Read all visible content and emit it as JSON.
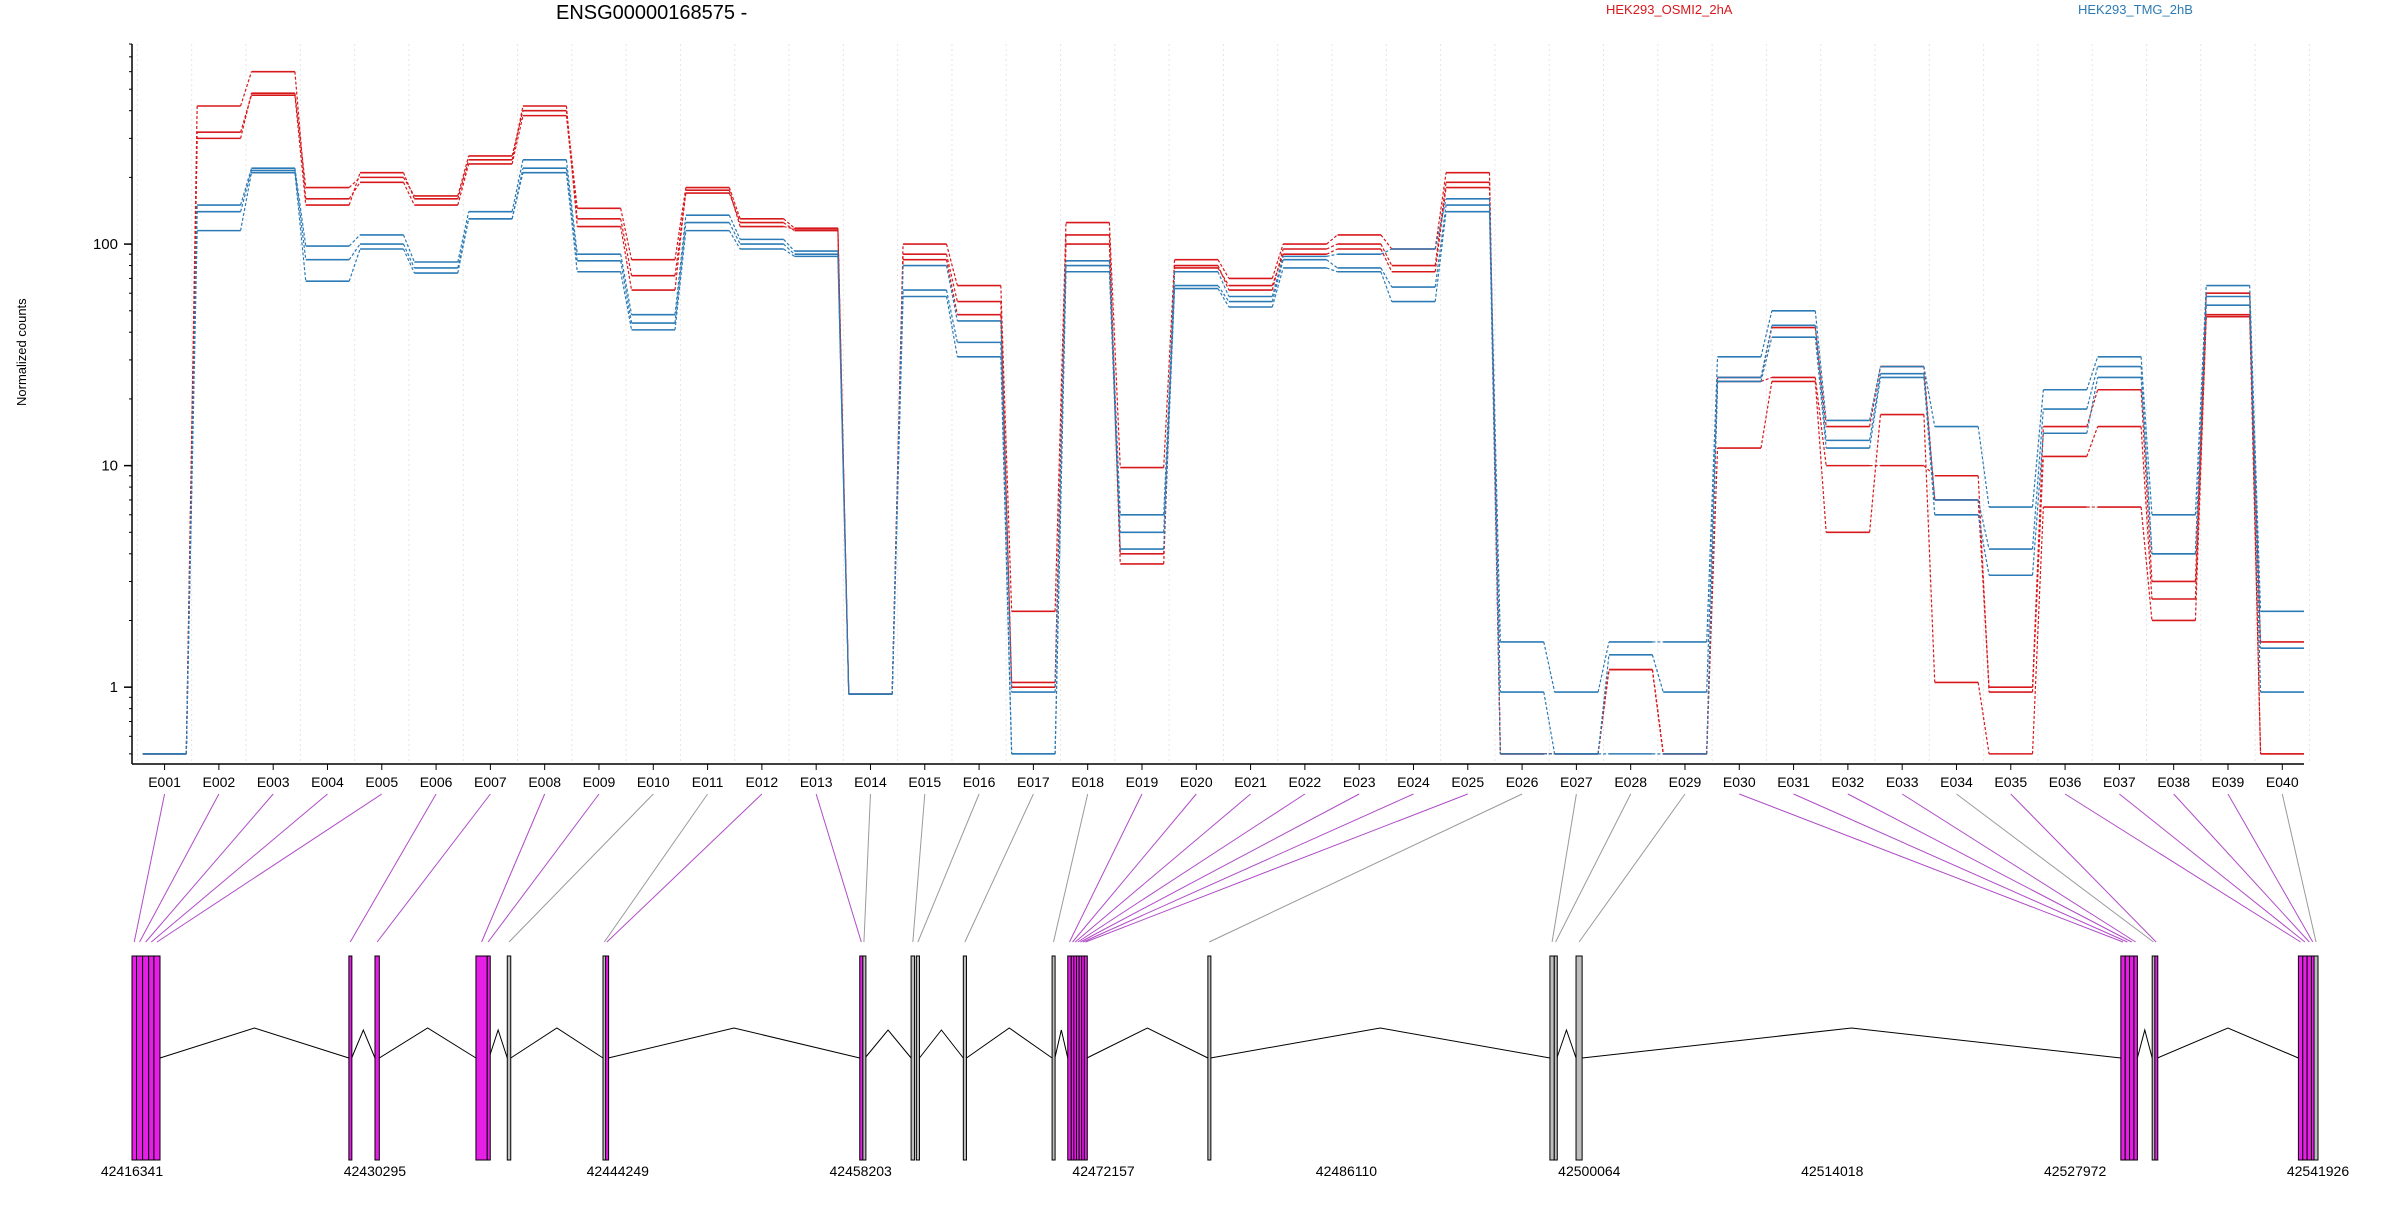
{
  "chart_data": {
    "type": "line",
    "title": "ENSG00000168575 -",
    "xlabel": "",
    "ylabel": "Normalized counts",
    "y_scale": "log",
    "ylim": [
      0.45,
      800
    ],
    "y_ticks": [
      1,
      10,
      100
    ],
    "y_tick_labels": [
      "1",
      "10",
      "100"
    ],
    "grid": "vertical dotted lines at exon boundaries",
    "legend_position": "top",
    "categories": [
      "E001",
      "E002",
      "E003",
      "E004",
      "E005",
      "E006",
      "E007",
      "E008",
      "E009",
      "E010",
      "E011",
      "E012",
      "E013",
      "E014",
      "E015",
      "E016",
      "E017",
      "E018",
      "E019",
      "E020",
      "E021",
      "E022",
      "E023",
      "E024",
      "E025",
      "E026",
      "E027",
      "E028",
      "E029",
      "E030",
      "E031",
      "E032",
      "E033",
      "E034",
      "E035",
      "E036",
      "E037",
      "E038",
      "E039",
      "E040"
    ],
    "series": [
      {
        "name": "HEK293_OSMI2_2hA",
        "group": "HEK293_OSMI2_2hA",
        "color": "#d7191c",
        "values": [
          0.5,
          300,
          480,
          180,
          200,
          165,
          250,
          400,
          145,
          85,
          180,
          130,
          118,
          0.93,
          100,
          65,
          2.2,
          125,
          9.8,
          85,
          70,
          100,
          110,
          95,
          210,
          0.5,
          0.5,
          1.2,
          0.5,
          25,
          42,
          15,
          28,
          7,
          1,
          15,
          22,
          3,
          60,
          0.5
        ]
      },
      {
        "name": "HEK293_OSMI2_2hA",
        "group": "HEK293_OSMI2_2hA",
        "color": "#d7191c",
        "values": [
          0.5,
          420,
          600,
          160,
          190,
          150,
          230,
          380,
          130,
          72,
          170,
          125,
          115,
          0.93,
          90,
          55,
          1.05,
          110,
          4,
          80,
          62,
          95,
          100,
          80,
          190,
          0.5,
          0.5,
          1.2,
          0.5,
          12,
          24,
          5,
          17,
          1.05,
          0.5,
          6.5,
          6.5,
          2,
          48,
          1.6
        ]
      },
      {
        "name": "HEK293_OSMI2_2hA",
        "group": "HEK293_OSMI2_2hA",
        "color": "#d7191c",
        "values": [
          0.5,
          320,
          470,
          150,
          210,
          160,
          240,
          420,
          120,
          62,
          175,
          120,
          117,
          0.93,
          85,
          48,
          1,
          100,
          3.6,
          78,
          65,
          90,
          95,
          75,
          180,
          0.5,
          0.5,
          1.2,
          0.5,
          24,
          25,
          10,
          10,
          9,
          0.95,
          11,
          15,
          2.5,
          47,
          0.5
        ]
      },
      {
        "name": "HEK293_TMG_2hB",
        "group": "HEK293_TMG_2hB",
        "color": "#2c7bb6",
        "values": [
          0.5,
          150,
          220,
          98,
          110,
          83,
          140,
          240,
          90,
          48,
          135,
          105,
          93,
          0.93,
          80,
          45,
          0.95,
          84,
          6,
          75,
          58,
          88,
          90,
          95,
          160,
          1.6,
          0.95,
          1.6,
          1.6,
          31,
          50,
          16,
          28,
          15,
          6.5,
          22,
          31,
          6,
          65,
          2.2
        ]
      },
      {
        "name": "HEK293_TMG_2hB",
        "group": "HEK293_TMG_2hB",
        "color": "#2c7bb6",
        "values": [
          0.5,
          140,
          215,
          85,
          100,
          78,
          130,
          220,
          84,
          44,
          125,
          100,
          90,
          0.93,
          62,
          36,
          0.5,
          80,
          5,
          65,
          55,
          85,
          78,
          64,
          150,
          0.95,
          0.5,
          1.4,
          0.95,
          25,
          43,
          13,
          26,
          7,
          4.2,
          18,
          28,
          4,
          58,
          1.5
        ]
      },
      {
        "name": "HEK293_TMG_2hB",
        "group": "HEK293_TMG_2hB",
        "color": "#2c7bb6",
        "values": [
          0.5,
          115,
          210,
          68,
          95,
          74,
          130,
          210,
          75,
          41,
          115,
          95,
          88,
          0.93,
          58,
          31,
          0.5,
          75,
          4.2,
          63,
          52,
          78,
          75,
          55,
          140,
          0.5,
          0.5,
          0.5,
          0.5,
          24,
          38,
          12,
          25,
          6,
          3.2,
          14,
          25,
          4,
          53,
          0.95
        ]
      }
    ],
    "x_axis": {
      "type": "genomic_coordinate",
      "tick_values": [
        42416341,
        42430295,
        42444249,
        42458203,
        42472157,
        42486110,
        42500064,
        42514018,
        42527972,
        42541926
      ],
      "tick_labels": [
        "42416341",
        "42430295",
        "42444249",
        "42458203",
        "42472157",
        "42486110",
        "42500064",
        "42514018",
        "42527972",
        "42541926"
      ],
      "range": [
        42416341,
        42541926
      ]
    },
    "exons": [
      {
        "id": "E001",
        "start": 42416341,
        "end": 42416600,
        "tested": true
      },
      {
        "id": "E002",
        "start": 42416600,
        "end": 42416950,
        "tested": true
      },
      {
        "id": "E003",
        "start": 42416950,
        "end": 42417300,
        "tested": true
      },
      {
        "id": "E004",
        "start": 42417300,
        "end": 42417600,
        "tested": true
      },
      {
        "id": "E005",
        "start": 42417600,
        "end": 42417950,
        "tested": true
      },
      {
        "id": "E006",
        "start": 42428800,
        "end": 42428960,
        "tested": true
      },
      {
        "id": "E007",
        "start": 42430300,
        "end": 42430550,
        "tested": true
      },
      {
        "id": "E008",
        "start": 42436100,
        "end": 42436750,
        "tested": true
      },
      {
        "id": "E009",
        "start": 42436750,
        "end": 42436850,
        "tested": true
      },
      {
        "id": "E010",
        "start": 42437900,
        "end": 42438100,
        "tested": false
      },
      {
        "id": "E011",
        "start": 42443400,
        "end": 42443550,
        "tested": false
      },
      {
        "id": "E012",
        "start": 42443550,
        "end": 42443700,
        "tested": true
      },
      {
        "id": "E013",
        "start": 42458150,
        "end": 42458330,
        "tested": true
      },
      {
        "id": "E014",
        "start": 42458330,
        "end": 42458450,
        "tested": false
      },
      {
        "id": "E015",
        "start": 42461100,
        "end": 42461300,
        "tested": false
      },
      {
        "id": "E016",
        "start": 42461400,
        "end": 42461580,
        "tested": false
      },
      {
        "id": "E017",
        "start": 42464100,
        "end": 42464280,
        "tested": false
      },
      {
        "id": "E018",
        "start": 42469200,
        "end": 42469360,
        "tested": false
      },
      {
        "id": "E019",
        "start": 42470100,
        "end": 42470300,
        "tested": true
      },
      {
        "id": "E020",
        "start": 42470300,
        "end": 42470450,
        "tested": true
      },
      {
        "id": "E021",
        "start": 42470450,
        "end": 42470600,
        "tested": true
      },
      {
        "id": "E022",
        "start": 42470600,
        "end": 42470750,
        "tested": true
      },
      {
        "id": "E023",
        "start": 42470750,
        "end": 42470900,
        "tested": true
      },
      {
        "id": "E024",
        "start": 42470900,
        "end": 42471050,
        "tested": true
      },
      {
        "id": "E025",
        "start": 42471050,
        "end": 42471200,
        "tested": true
      },
      {
        "id": "E026",
        "start": 42478150,
        "end": 42478300,
        "tested": false
      },
      {
        "id": "E027",
        "start": 42497800,
        "end": 42498050,
        "tested": false
      },
      {
        "id": "E028",
        "start": 42498050,
        "end": 42498200,
        "tested": false
      },
      {
        "id": "E029",
        "start": 42499300,
        "end": 42499650,
        "tested": false
      },
      {
        "id": "E030",
        "start": 42530600,
        "end": 42530850,
        "tested": true
      },
      {
        "id": "E031",
        "start": 42530850,
        "end": 42531100,
        "tested": true
      },
      {
        "id": "E032",
        "start": 42531100,
        "end": 42531350,
        "tested": true
      },
      {
        "id": "E033",
        "start": 42531350,
        "end": 42531550,
        "tested": true
      },
      {
        "id": "E034",
        "start": 42532400,
        "end": 42532550,
        "tested": false
      },
      {
        "id": "E035",
        "start": 42532550,
        "end": 42532700,
        "tested": true
      },
      {
        "id": "E036",
        "start": 42540800,
        "end": 42541050,
        "tested": true
      },
      {
        "id": "E037",
        "start": 42541050,
        "end": 42541300,
        "tested": true
      },
      {
        "id": "E038",
        "start": 42541300,
        "end": 42541550,
        "tested": true
      },
      {
        "id": "E039",
        "start": 42541550,
        "end": 42541700,
        "tested": true
      },
      {
        "id": "E040",
        "start": 42541700,
        "end": 42541926,
        "tested": false
      }
    ],
    "colors": {
      "group_a": "#d7191c",
      "group_b": "#2c7bb6",
      "exon_tested": "#e61ee6",
      "exon_untested": "#bebebe",
      "connector_tested": "#b04cc7",
      "connector_untested": "#9a9a9a"
    }
  }
}
